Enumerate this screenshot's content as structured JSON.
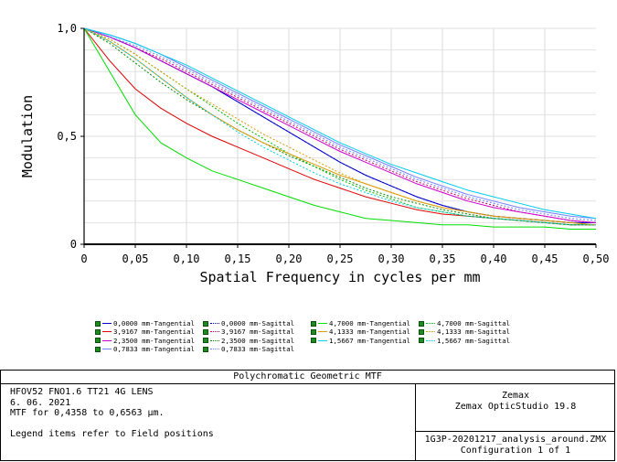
{
  "chart_data": {
    "type": "line",
    "xlabel": "Spatial Frequency in cycles per mm",
    "ylabel": "Modulation",
    "xlim": [
      0,
      0.5
    ],
    "ylim": [
      0,
      1
    ],
    "x_ticks": [
      "0",
      "0,05",
      "0,10",
      "0,15",
      "0,20",
      "0,25",
      "0,30",
      "0,35",
      "0,40",
      "0,45",
      "0,50"
    ],
    "y_ticks": [
      "0",
      "0,5",
      "1,0"
    ],
    "grid": true,
    "x": [
      0,
      0.025,
      0.05,
      0.075,
      0.1,
      0.125,
      0.15,
      0.175,
      0.2,
      0.225,
      0.25,
      0.275,
      0.3,
      0.325,
      0.35,
      0.375,
      0.4,
      0.425,
      0.45,
      0.475,
      0.5
    ],
    "series": [
      {
        "name": "0,0000 mm-Tangential",
        "color": "#0000cc",
        "dash": "solid",
        "values": [
          1.0,
          0.96,
          0.91,
          0.85,
          0.79,
          0.73,
          0.66,
          0.59,
          0.52,
          0.45,
          0.38,
          0.32,
          0.27,
          0.22,
          0.18,
          0.15,
          0.13,
          0.12,
          0.11,
          0.1,
          0.1
        ]
      },
      {
        "name": "0,0000 mm-Sagittal",
        "color": "#0000cc",
        "dash": "dotted",
        "values": [
          1.0,
          0.96,
          0.91,
          0.85,
          0.79,
          0.73,
          0.66,
          0.59,
          0.52,
          0.45,
          0.38,
          0.32,
          0.27,
          0.22,
          0.18,
          0.15,
          0.13,
          0.12,
          0.11,
          0.1,
          0.1
        ]
      },
      {
        "name": "3,9167 mm-Tangential",
        "color": "#e00000",
        "dash": "solid",
        "values": [
          1.0,
          0.85,
          0.72,
          0.63,
          0.56,
          0.5,
          0.45,
          0.4,
          0.35,
          0.3,
          0.26,
          0.22,
          0.19,
          0.16,
          0.14,
          0.13,
          0.12,
          0.11,
          0.1,
          0.09,
          0.09
        ]
      },
      {
        "name": "3,9167 mm-Sagittal",
        "color": "#cc0066",
        "dash": "dotted",
        "values": [
          1.0,
          0.96,
          0.91,
          0.86,
          0.8,
          0.74,
          0.68,
          0.62,
          0.56,
          0.5,
          0.44,
          0.39,
          0.34,
          0.29,
          0.25,
          0.21,
          0.18,
          0.15,
          0.13,
          0.11,
          0.1
        ]
      },
      {
        "name": "2,3500 mm-Tangential",
        "color": "#cc00cc",
        "dash": "solid",
        "values": [
          1.0,
          0.96,
          0.91,
          0.85,
          0.79,
          0.73,
          0.67,
          0.61,
          0.55,
          0.49,
          0.43,
          0.38,
          0.33,
          0.28,
          0.24,
          0.2,
          0.17,
          0.15,
          0.13,
          0.11,
          0.1
        ]
      },
      {
        "name": "2,3500 mm-Sagittal",
        "color": "#008800",
        "dash": "dotted",
        "values": [
          1.0,
          0.93,
          0.84,
          0.75,
          0.67,
          0.6,
          0.53,
          0.47,
          0.41,
          0.36,
          0.31,
          0.26,
          0.22,
          0.19,
          0.16,
          0.14,
          0.12,
          0.11,
          0.1,
          0.09,
          0.09
        ]
      },
      {
        "name": "0,7833 mm-Tangential",
        "color": "#7080ff",
        "dash": "solid",
        "values": [
          1.0,
          0.97,
          0.93,
          0.88,
          0.82,
          0.76,
          0.7,
          0.64,
          0.58,
          0.52,
          0.46,
          0.41,
          0.36,
          0.31,
          0.27,
          0.23,
          0.2,
          0.17,
          0.15,
          0.13,
          0.12
        ]
      },
      {
        "name": "0,7833 mm-Sagittal",
        "color": "#7080ff",
        "dash": "dotted",
        "values": [
          1.0,
          0.96,
          0.92,
          0.87,
          0.81,
          0.75,
          0.69,
          0.63,
          0.57,
          0.51,
          0.45,
          0.4,
          0.35,
          0.3,
          0.26,
          0.22,
          0.19,
          0.16,
          0.14,
          0.12,
          0.11
        ]
      },
      {
        "name": "4,7000 mm-Tangential",
        "color": "#00dd00",
        "dash": "solid",
        "values": [
          1.0,
          0.8,
          0.6,
          0.47,
          0.4,
          0.34,
          0.3,
          0.26,
          0.22,
          0.18,
          0.15,
          0.12,
          0.11,
          0.1,
          0.09,
          0.09,
          0.08,
          0.08,
          0.08,
          0.07,
          0.07
        ]
      },
      {
        "name": "4,7000 mm-Sagittal",
        "color": "#00bb00",
        "dash": "dotted",
        "values": [
          1.0,
          0.95,
          0.88,
          0.8,
          0.72,
          0.64,
          0.56,
          0.49,
          0.42,
          0.36,
          0.3,
          0.25,
          0.21,
          0.17,
          0.15,
          0.13,
          0.12,
          0.11,
          0.1,
          0.09,
          0.09
        ]
      },
      {
        "name": "4,1333 mm-Tangential",
        "color": "#dd9900",
        "dash": "solid",
        "values": [
          1.0,
          0.94,
          0.86,
          0.77,
          0.68,
          0.6,
          0.53,
          0.47,
          0.42,
          0.37,
          0.32,
          0.28,
          0.24,
          0.2,
          0.17,
          0.15,
          0.13,
          0.12,
          0.11,
          0.1,
          0.09
        ]
      },
      {
        "name": "4,1333 mm-Sagittal",
        "color": "#dd9900",
        "dash": "dotted",
        "values": [
          1.0,
          0.95,
          0.88,
          0.8,
          0.72,
          0.65,
          0.58,
          0.51,
          0.45,
          0.39,
          0.33,
          0.28,
          0.24,
          0.2,
          0.17,
          0.15,
          0.13,
          0.12,
          0.11,
          0.1,
          0.09
        ]
      },
      {
        "name": "1,5667 mm-Tangential",
        "color": "#00ccee",
        "dash": "solid",
        "values": [
          1.0,
          0.97,
          0.93,
          0.88,
          0.83,
          0.77,
          0.71,
          0.65,
          0.59,
          0.53,
          0.47,
          0.42,
          0.37,
          0.33,
          0.29,
          0.25,
          0.22,
          0.19,
          0.16,
          0.14,
          0.12
        ]
      },
      {
        "name": "1,5667 mm-Sagittal",
        "color": "#00ccee",
        "dash": "dotted",
        "values": [
          1.0,
          0.94,
          0.86,
          0.77,
          0.68,
          0.6,
          0.52,
          0.45,
          0.39,
          0.33,
          0.28,
          0.24,
          0.2,
          0.17,
          0.15,
          0.13,
          0.12,
          0.11,
          0.1,
          0.09,
          0.09
        ]
      }
    ]
  },
  "info": {
    "title": "Polychromatic Geometric MTF",
    "lines": [
      "HFOV52 FNO1.6 TT21 4G LENS",
      "6. 06. 2021",
      "MTF for 0,4358 to 0,6563 µm."
    ],
    "note": "Legend items refer to Field positions",
    "vendor": "Zemax",
    "product": "Zemax OpticStudio 19.8",
    "file": "1G3P-20201217_analysis_around.ZMX",
    "config": "Configuration 1 of 1"
  }
}
